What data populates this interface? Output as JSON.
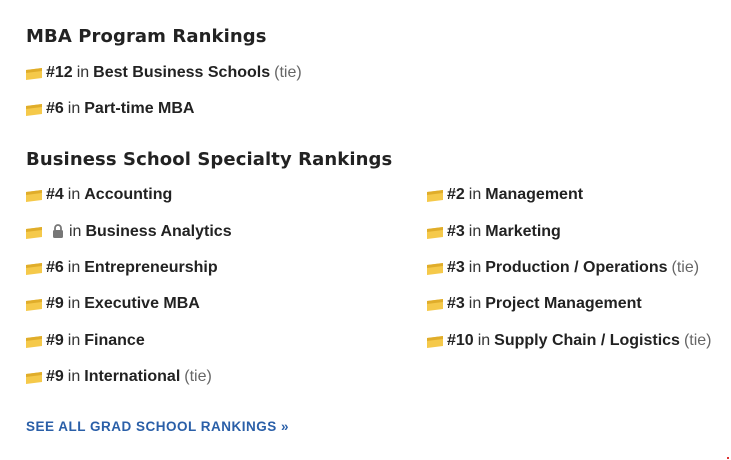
{
  "mba_section": {
    "title": "MBA Program Rankings",
    "items": [
      {
        "rank": "#12",
        "in": "in",
        "category": "Best Business Schools",
        "tie": "(tie)"
      },
      {
        "rank": "#6",
        "in": "in",
        "category": "Part-time MBA",
        "tie": ""
      }
    ]
  },
  "specialty_section": {
    "title": "Business School Specialty Rankings",
    "left_items": [
      {
        "rank": "#4",
        "in": "in",
        "category": "Accounting",
        "tie": ""
      },
      {
        "rank": "",
        "in": "in",
        "category": "Business Analytics",
        "tie": "",
        "locked": true
      },
      {
        "rank": "#6",
        "in": "in",
        "category": "Entrepreneurship",
        "tie": ""
      },
      {
        "rank": "#9",
        "in": "in",
        "category": "Executive MBA",
        "tie": ""
      },
      {
        "rank": "#9",
        "in": "in",
        "category": "Finance",
        "tie": ""
      },
      {
        "rank": "#9",
        "in": "in",
        "category": "International",
        "tie": "(tie)"
      }
    ],
    "right_items": [
      {
        "rank": "#2",
        "in": "in",
        "category": "Management",
        "tie": ""
      },
      {
        "rank": "#3",
        "in": "in",
        "category": "Marketing",
        "tie": ""
      },
      {
        "rank": "#3",
        "in": "in",
        "category": "Production / Operations",
        "tie": "(tie)"
      },
      {
        "rank": "#3",
        "in": "in",
        "category": "Project Management",
        "tie": ""
      },
      {
        "rank": "#10",
        "in": "in",
        "category": "Supply Chain / Logistics",
        "tie": "(tie)"
      }
    ]
  },
  "see_all_link": "SEE ALL GRAD SCHOOL RANKINGS »",
  "icons": {
    "ranking": "ribbon-flag-icon",
    "locked": "lock-icon"
  },
  "colors": {
    "ribbon_fill": "#f5c94a",
    "ribbon_shade": "#e0ad2a",
    "link": "#2a5fa8",
    "tie_text": "#666666"
  }
}
